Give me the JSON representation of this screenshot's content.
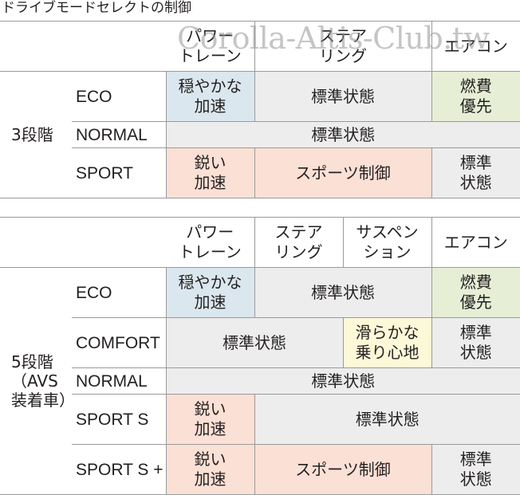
{
  "title": "ドライブモードセレクトの制御",
  "watermark": "Corolla-Altis-Club.tw",
  "table1": {
    "headers": [
      "パワー\nトレーン",
      "ステア\nリング",
      "エアコン"
    ],
    "level": "3段階",
    "rows": [
      {
        "mode": "ECO",
        "cells": [
          "穏やかな\n加速",
          "標準状態",
          "燃費\n優先"
        ]
      },
      {
        "mode": "NORMAL",
        "cells": [
          "標準状態"
        ]
      },
      {
        "mode": "SPORT",
        "cells": [
          "鋭い\n加速",
          "スポーツ制御",
          "標準\n状態"
        ]
      }
    ]
  },
  "table2": {
    "headers": [
      "パワー\nトレーン",
      "ステア\nリング",
      "サスペン\nション",
      "エアコン"
    ],
    "level": "5段階\n（AVS\n装着車）",
    "rows": [
      {
        "mode": "ECO",
        "cells": [
          "穏やかな\n加速",
          "標準状態",
          "燃費\n優先"
        ]
      },
      {
        "mode": "COMFORT",
        "cells": [
          "標準状態",
          "滑らかな\n乗り心地",
          "標準\n状態"
        ]
      },
      {
        "mode": "NORMAL",
        "cells": [
          "標準状態"
        ]
      },
      {
        "mode": "SPORT S",
        "cells": [
          "鋭い\n加速",
          "標準状態"
        ]
      },
      {
        "mode": "SPORT S +",
        "cells": [
          "鋭い\n加速",
          "スポーツ制御",
          "標準\n状態"
        ]
      }
    ]
  },
  "colors": {
    "blue": "#dbe7ef",
    "green": "#e6efd6",
    "grey": "#ededed",
    "pink": "#fbe0d5",
    "yellow": "#fdf8d8",
    "border": "#9a9a9a"
  }
}
